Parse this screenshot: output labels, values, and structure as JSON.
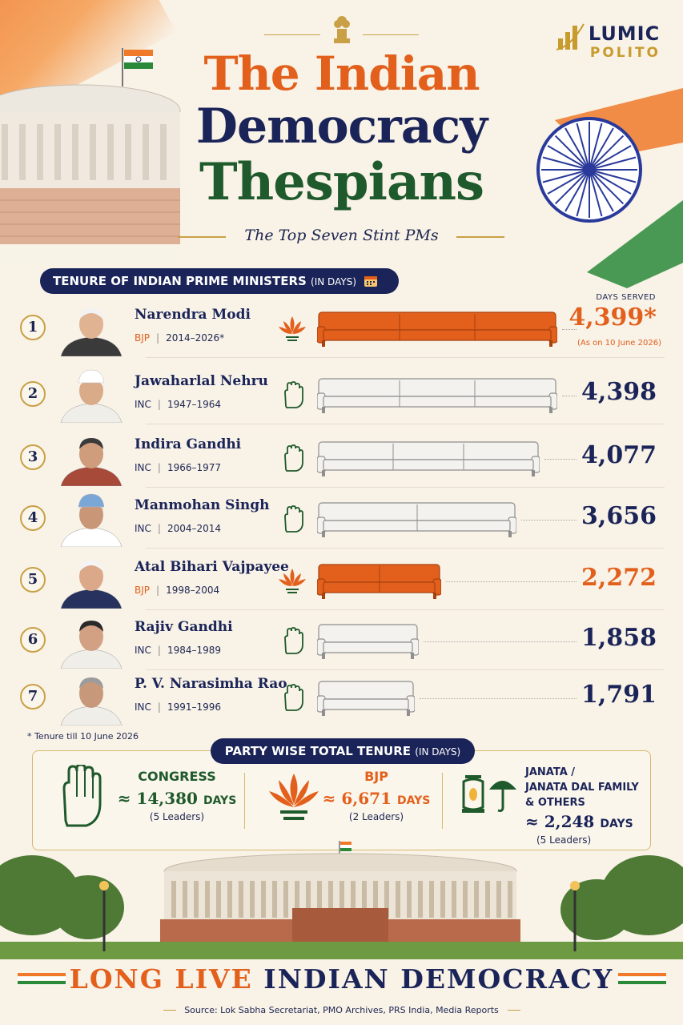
{
  "header": {
    "title_line1": "The Indian",
    "title_line2": "Democracy",
    "title_line3": "Thespians",
    "subtitle": "The Top Seven Stint PMs",
    "brand_line1": "LUMIC",
    "brand_line2": "POLITO"
  },
  "section": {
    "label": "TENURE OF INDIAN PRIME MINISTERS",
    "unit": "(IN DAYS)",
    "value_column_label": "DAYS SERVED"
  },
  "chart_data": {
    "type": "bar",
    "title": "TENURE OF INDIAN PRIME MINISTERS (IN DAYS)",
    "orientation": "horizontal",
    "categories": [
      "Narendra Modi",
      "Jawaharlal Nehru",
      "Indira Gandhi",
      "Manmohan Singh",
      "Atal Bihari Vajpayee",
      "Rajiv Gandhi",
      "P. V. Narasimha Rao"
    ],
    "values": [
      4399,
      4398,
      4077,
      3656,
      2272,
      1858,
      1791
    ],
    "rows": [
      {
        "rank": "1",
        "name": "Narendra Modi",
        "party": "BJP",
        "years": "2014–2026*",
        "days": 4399,
        "days_label": "4,399*",
        "note": "(As on 10 June 2026)"
      },
      {
        "rank": "2",
        "name": "Jawaharlal Nehru",
        "party": "INC",
        "years": "1947–1964",
        "days": 4398,
        "days_label": "4,398"
      },
      {
        "rank": "3",
        "name": "Indira Gandhi",
        "party": "INC",
        "years": "1966–1977",
        "days": 4077,
        "days_label": "4,077"
      },
      {
        "rank": "4",
        "name": "Manmohan Singh",
        "party": "INC",
        "years": "2004–2014",
        "days": 3656,
        "days_label": "3,656"
      },
      {
        "rank": "5",
        "name": "Atal Bihari Vajpayee",
        "party": "BJP",
        "years": "1998–2004",
        "days": 2272,
        "days_label": "2,272"
      },
      {
        "rank": "6",
        "name": "Rajiv Gandhi",
        "party": "INC",
        "years": "1984–1989",
        "days": 1858,
        "days_label": "1,858"
      },
      {
        "rank": "7",
        "name": "P. V. Narasimha Rao",
        "party": "INC",
        "years": "1991–1996",
        "days": 1791,
        "days_label": "1,791"
      }
    ],
    "colors": {
      "BJP": "#e2601c",
      "INC": "#f4f2ee"
    }
  },
  "footnote": "* Tenure till 10 June 2026",
  "party_totals": {
    "label": "PARTY WISE TOTAL TENURE",
    "unit": "(IN DAYS)",
    "items": [
      {
        "name": "CONGRESS",
        "days": "≈ 14,380",
        "unit": "DAYS",
        "leaders": "(5 Leaders)",
        "color": "#1f5a2c"
      },
      {
        "name": "BJP",
        "days": "≈ 6,671",
        "unit": "DAYS",
        "leaders": "(2 Leaders)",
        "color": "#e2601c"
      },
      {
        "name": "JANATA /",
        "name2": "JANATA DAL FAMILY",
        "name3": "& OTHERS",
        "days": "≈ 2,248",
        "unit": "DAYS",
        "leaders": "(5 Leaders)",
        "color": "#1b2458"
      }
    ]
  },
  "closing": {
    "part1": "LONG LIVE",
    "part2": "INDIAN DEMOCRACY"
  },
  "source": "Source: Lok Sabha Secretariat, PMO Archives, PRS India, Media Reports"
}
